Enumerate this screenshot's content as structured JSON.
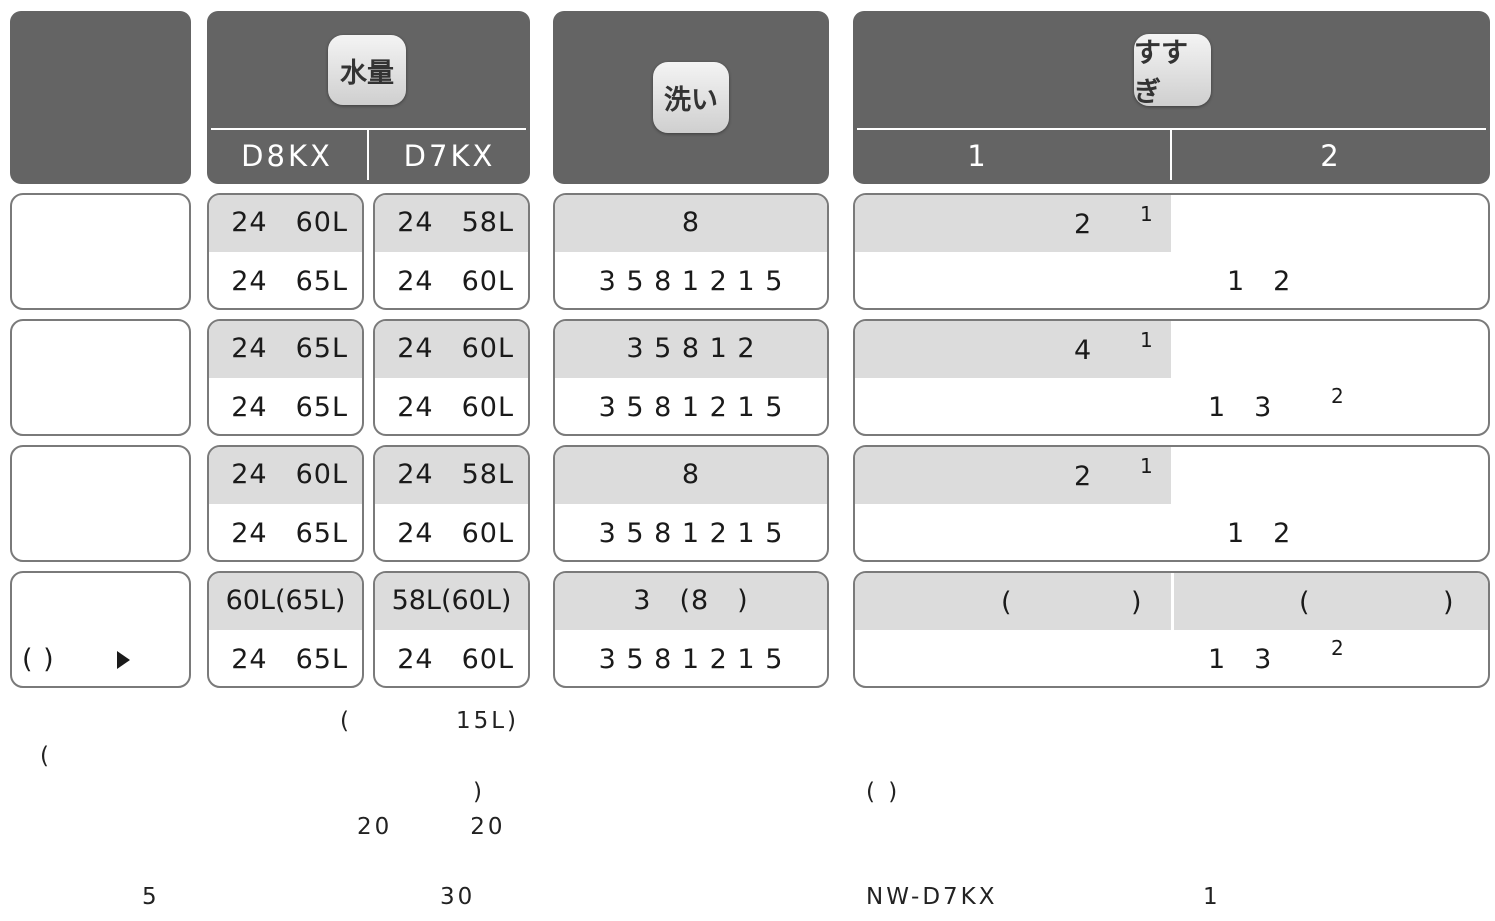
{
  "header": {
    "water": {
      "label": "水量",
      "models": [
        "D8KX",
        "D7KX"
      ]
    },
    "wash": {
      "label": "洗い"
    },
    "rinse": {
      "label": "すすぎ",
      "cols": [
        "1",
        "2"
      ]
    }
  },
  "rows": [
    {
      "label_text": "",
      "water": [
        [
          "24　60L",
          "24　65L"
        ],
        [
          "24　58L",
          "24　60L"
        ]
      ],
      "wash": [
        "8",
        "3 5 8 1 2 1 5"
      ],
      "rinse_top": {
        "col1": "2",
        "col1_sup": "1",
        "col2": ""
      },
      "rinse_bottom": {
        "text": "1　2",
        "sup": ""
      }
    },
    {
      "label_text": "",
      "water": [
        [
          "24　65L",
          "24　65L"
        ],
        [
          "24　60L",
          "24　60L"
        ]
      ],
      "wash": [
        "3 5 8 1 2",
        "3 5 8 1 2 1 5"
      ],
      "rinse_top": {
        "col1": "4",
        "col1_sup": "1",
        "col2": ""
      },
      "rinse_bottom": {
        "text": "1　3",
        "sup": "2"
      }
    },
    {
      "label_text": "",
      "water": [
        [
          "24　60L",
          "24　65L"
        ],
        [
          "24　58L",
          "24　60L"
        ]
      ],
      "wash": [
        "8",
        "3 5 8 1 2 1 5"
      ],
      "rinse_top": {
        "col1": "2",
        "col1_sup": "1",
        "col2": ""
      },
      "rinse_bottom": {
        "text": "1　2",
        "sup": ""
      }
    },
    {
      "label_text": "( )",
      "water": [
        [
          "60L(65L)",
          "24　65L"
        ],
        [
          "58L(60L)",
          "24　60L"
        ]
      ],
      "wash": [
        "3　(8　)",
        "3 5 8 1 2 1 5"
      ],
      "rinse_top": {
        "col1_open": "(",
        "col1_close": ")",
        "col2_open": "(",
        "col2_close": ")"
      },
      "rinse_bottom": {
        "text": "1　3",
        "sup": "2"
      }
    }
  ],
  "notes": {
    "left": [
      {
        "text": "(　　　　15L)"
      },
      {
        "text": "("
      },
      {
        "text": ")"
      },
      {
        "text": "20　　　20"
      },
      {
        "text": "5"
      },
      {
        "text": "30"
      }
    ],
    "right": [
      {
        "text": "( )"
      },
      {
        "text": "NW-D7KX"
      },
      {
        "text": "1"
      }
    ]
  },
  "colors": {
    "header_bg": "#646464",
    "band_bg": "#dcdcdc",
    "border": "#7a7a7a"
  }
}
